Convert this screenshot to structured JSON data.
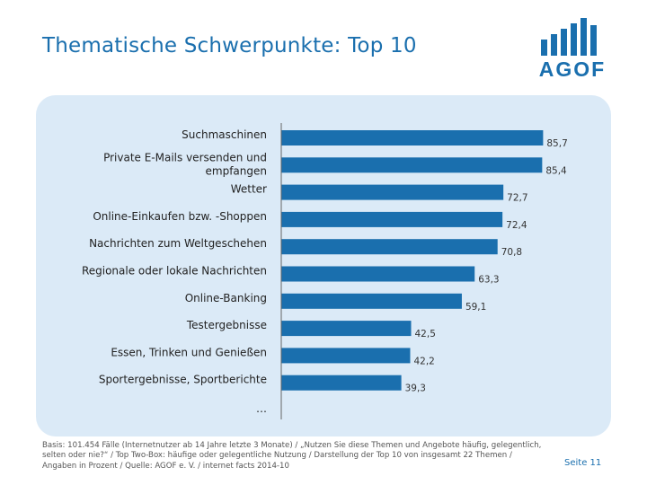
{
  "header": {
    "title": "Thematische Schwerpunkte: Top 10",
    "logo_text": "AGOF"
  },
  "colors": {
    "accent": "#1a6fae",
    "bar": "#1a6fae",
    "panel": "#dbeaf7"
  },
  "chart_data": {
    "type": "bar",
    "orientation": "horizontal",
    "categories": [
      "Suchmaschinen",
      "Private E-Mails versenden und empfangen",
      "Wetter",
      "Online-Einkaufen bzw. -Shoppen",
      "Nachrichten zum Weltgeschehen",
      "Regionale oder lokale Nachrichten",
      "Online-Banking",
      "Testergebnisse",
      "Essen, Trinken und Genießen",
      "Sportergebnisse, Sportberichte"
    ],
    "values": [
      85.7,
      85.4,
      72.7,
      72.4,
      70.8,
      63.3,
      59.1,
      42.5,
      42.2,
      39.3
    ],
    "value_labels": [
      "85,7",
      "85,4",
      "72,7",
      "72,4",
      "70,8",
      "63,3",
      "59,1",
      "42,5",
      "42,2",
      "39,3"
    ],
    "trailing_label": "…",
    "grid": false,
    "legend": "none"
  },
  "footer": {
    "footnote": "Basis: 101.454 Fälle (Internetnutzer ab 14 Jahre letzte 3 Monate) / „Nutzen Sie diese Themen und Angebote häufig, gelegentlich, selten oder nie?“ / Top Two-Box: häufige oder gelegentliche Nutzung / Darstellung der Top 10 von insgesamt 22 Themen / Angaben in Prozent / Quelle: AGOF e. V. / internet facts 2014-10",
    "page_label": "Seite 11"
  }
}
